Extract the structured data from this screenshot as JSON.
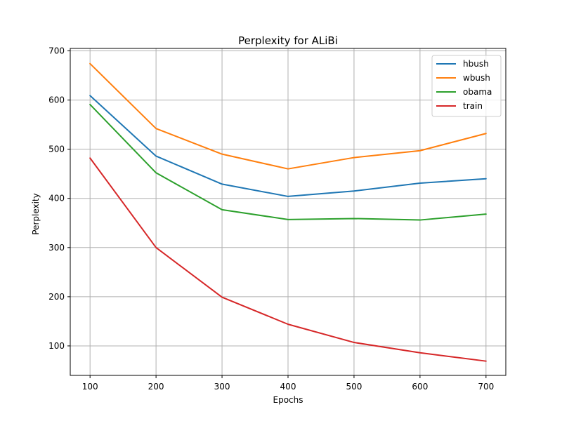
{
  "chart_data": {
    "type": "line",
    "title": "Perplexity for ALiBi",
    "xlabel": "Epochs",
    "ylabel": "Perplexity",
    "x": [
      100,
      200,
      300,
      400,
      500,
      600,
      700
    ],
    "xlim": [
      70,
      730
    ],
    "ylim": [
      40,
      705
    ],
    "xticks": [
      100,
      200,
      300,
      400,
      500,
      600,
      700
    ],
    "yticks": [
      100,
      200,
      300,
      400,
      500,
      600,
      700
    ],
    "grid": true,
    "legend_position": "top-right",
    "series": [
      {
        "name": "hbush",
        "color": "#1f77b4",
        "values": [
          609,
          486,
          429,
          404,
          415,
          431,
          440
        ]
      },
      {
        "name": "wbush",
        "color": "#ff7f0e",
        "values": [
          674,
          542,
          490,
          460,
          483,
          497,
          532
        ]
      },
      {
        "name": "obama",
        "color": "#2ca02c",
        "values": [
          591,
          452,
          377,
          357,
          359,
          356,
          368
        ]
      },
      {
        "name": "train",
        "color": "#d62728",
        "values": [
          482,
          300,
          199,
          144,
          107,
          86,
          69
        ]
      }
    ]
  }
}
